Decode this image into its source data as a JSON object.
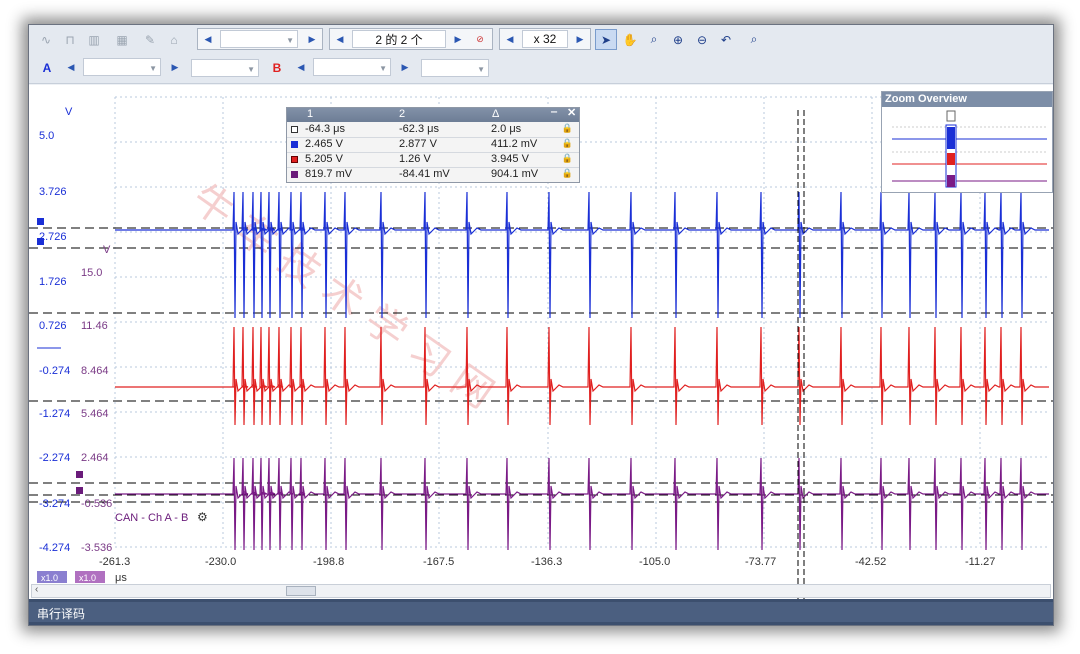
{
  "toolbar": {
    "page_field": "2 的 2 个",
    "zoom_field": "x 32"
  },
  "channel_bar": {
    "a_label": "A",
    "b_label": "B"
  },
  "measurements": {
    "headers": [
      "1",
      "2",
      "Δ"
    ],
    "rows": [
      {
        "color": "#ffffff",
        "c1": "-64.3 μs",
        "c2": "-62.3 μs",
        "delta": "2.0 μs"
      },
      {
        "color": "#1a2fd6",
        "c1": "2.465 V",
        "c2": "2.877 V",
        "delta": "411.2 mV"
      },
      {
        "color": "#e02020",
        "c1": "5.205 V",
        "c2": "1.26 V",
        "delta": "3.945 V"
      },
      {
        "color": "#6a1b7a",
        "c1": "819.7 mV",
        "c2": "-84.41 mV",
        "delta": "904.1 mV"
      }
    ]
  },
  "zoom_overview": {
    "title": "Zoom Overview"
  },
  "axes": {
    "y_unit_left": "V",
    "y_unit_right": "V",
    "left_ticks": [
      "5.0",
      "3.726",
      "2.726",
      "1.726",
      "0.726",
      "-0.274",
      "-1.274",
      "-2.274",
      "-3.274",
      "-4.274"
    ],
    "right_ticks": [
      "15.0",
      "11.46",
      "8.464",
      "5.464",
      "2.464",
      "-0.536",
      "-3.536"
    ],
    "x_ticks": [
      "-261.3",
      "-230.0",
      "-198.8",
      "-167.5",
      "-136.3",
      "-105.0",
      "-73.77",
      "-42.52",
      "-11.27"
    ],
    "x_unit": "μs",
    "scale_a": "x1.0",
    "scale_b": "x1.0"
  },
  "decoder_label": "CAN - Ch A - B",
  "status_bar": {
    "text": "串行译码"
  },
  "colors": {
    "channel_a": "#1a2fd6",
    "channel_b": "#e02020",
    "math": "#7a1a86"
  }
}
